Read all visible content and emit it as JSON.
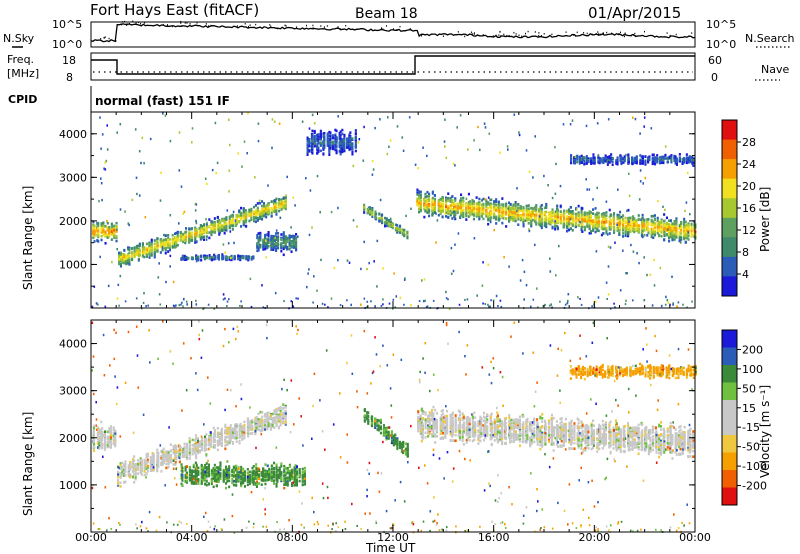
{
  "header": {
    "station": "Fort Hays East (fitACF)",
    "beam": "Beam 18",
    "date": "01/Apr/2015"
  },
  "top_panels": {
    "nsky_label": "N.Sky",
    "nsky_ticks": [
      "10^5",
      "10^0"
    ],
    "nsearch_label": "N.Search",
    "nsearch_ticks": [
      "10^5",
      "10^0"
    ],
    "freq_label": "Freq.",
    "freq_unit": "[MHz]",
    "freq_ticks": [
      "18",
      "8"
    ],
    "nave_label": "Nave",
    "nave_ticks": [
      "60",
      "0"
    ],
    "cpid_label": "CPID",
    "cpid_text": "normal (fast) 151 IF"
  },
  "colors": {
    "power_scale": [
      "#1a1ad8",
      "#2a5cb8",
      "#3e8a6a",
      "#5ea060",
      "#a8c830",
      "#f0e020",
      "#f5a000",
      "#f06000",
      "#e01010"
    ],
    "velocity_scale": [
      "#e01010",
      "#f06000",
      "#f5a000",
      "#f0c840",
      "#c8c8c8",
      "#c8c8c8",
      "#70c040",
      "#3a8a3a",
      "#2a5cb8",
      "#1a1ad8"
    ],
    "ground_scatter": "#a0a0a0"
  },
  "chart_data": [
    {
      "type": "heatmap",
      "panel": "power",
      "ylabel": "Slant Range [km]",
      "ylim": [
        0,
        4500
      ],
      "yticks": [
        "1000",
        "2000",
        "3000",
        "4000"
      ],
      "xlim": [
        0,
        24
      ],
      "colorbar": {
        "label": "Power [dB]",
        "ticks": [
          "4",
          "8",
          "12",
          "16",
          "20",
          "24",
          "28"
        ],
        "range": [
          0,
          30
        ]
      },
      "features": [
        {
          "t0": 0.0,
          "t1": 1.0,
          "r_center": 1750,
          "r_width": 500,
          "peak": 24
        },
        {
          "t0": 1.0,
          "t1": 7.7,
          "r_center_start": 1100,
          "r_center_end": 2400,
          "r_width": 450,
          "peak": 20
        },
        {
          "t0": 3.5,
          "t1": 6.5,
          "r_center": 1150,
          "r_width": 150,
          "peak": 8
        },
        {
          "t0": 6.5,
          "t1": 8.2,
          "r_center": 1500,
          "r_width": 500,
          "peak": 10
        },
        {
          "t0": 8.5,
          "t1": 10.5,
          "r_center": 3800,
          "r_width": 600,
          "peak": 6
        },
        {
          "t0": 10.8,
          "t1": 12.6,
          "r_center_start": 2300,
          "r_center_end": 1650,
          "r_width": 250,
          "peak": 16
        },
        {
          "t0": 12.9,
          "t1": 24.0,
          "r_center_start": 2400,
          "r_center_end": 1750,
          "r_width": 600,
          "peak": 22
        },
        {
          "t0": 19.0,
          "t1": 24.0,
          "r_center": 3400,
          "r_width": 250,
          "peak": 6
        }
      ]
    },
    {
      "type": "heatmap",
      "panel": "velocity",
      "ylabel": "Slant Range [km]",
      "ylim": [
        0,
        4500
      ],
      "yticks": [
        "1000",
        "2000",
        "3000",
        "4000"
      ],
      "xlim": [
        0,
        24
      ],
      "xlabel": "Time UT",
      "xticks": [
        "00:00",
        "04:00",
        "08:00",
        "12:00",
        "16:00",
        "20:00",
        "00:00"
      ],
      "colorbar": {
        "label": "Velocity [m s⁻¹]",
        "ticks": [
          "200",
          "100",
          "50",
          "15",
          "-15",
          "-50",
          "-100",
          "-200"
        ],
        "range": [
          -250,
          250
        ]
      },
      "features": [
        {
          "t0": 0.0,
          "t1": 1.0,
          "r_center": 2000,
          "r_width": 600,
          "vel": 0
        },
        {
          "t0": 1.0,
          "t1": 7.7,
          "r_center_start": 1200,
          "r_center_end": 2500,
          "r_width": 500,
          "vel": 0
        },
        {
          "t0": 3.5,
          "t1": 8.5,
          "r_center": 1200,
          "r_width": 500,
          "vel": 60
        },
        {
          "t0": 10.8,
          "t1": 12.6,
          "r_center_start": 2500,
          "r_center_end": 1700,
          "r_width": 350,
          "vel": 60
        },
        {
          "t0": 12.9,
          "t1": 24.0,
          "r_center_start": 2300,
          "r_center_end": 1900,
          "r_width": 700,
          "vel": 0
        },
        {
          "t0": 19.0,
          "t1": 24.0,
          "r_center": 3400,
          "r_width": 300,
          "vel": -60
        }
      ]
    }
  ]
}
